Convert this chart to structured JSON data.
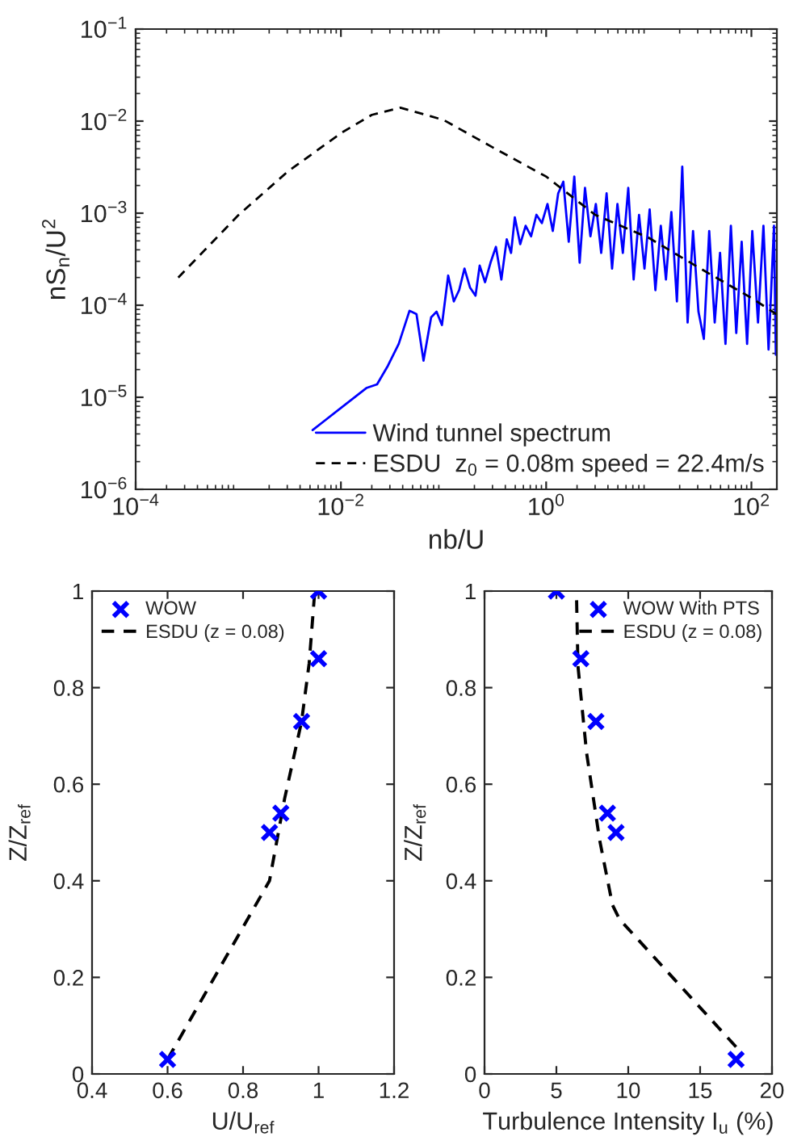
{
  "chart_data": [
    {
      "type": "line",
      "xlabel": "nb/U",
      "ylabel": "nS$_{n}$/U$^{2}$",
      "log": "xy",
      "grid": false,
      "legend": "bottom right",
      "xlim": [
        0.0001,
        177
      ],
      "ylim": [
        1e-06,
        0.1
      ],
      "xticks": [
        {
          "value": 0.0001,
          "label": "10$^{−4}$"
        },
        {
          "value": 0.01,
          "label": "10$^{−2}$"
        },
        {
          "value": 1,
          "label": "10$^{0}$"
        },
        {
          "value": 100,
          "label": "10$^{2}$"
        }
      ],
      "yticks": [
        {
          "value": 1e-06,
          "label": "10$^{−6}$"
        },
        {
          "value": 1e-05,
          "label": "10$^{−5}$"
        },
        {
          "value": 0.0001,
          "label": "10$^{−4}$"
        },
        {
          "value": 0.001,
          "label": "10$^{−3}$"
        },
        {
          "value": 0.01,
          "label": "10$^{−2}$"
        },
        {
          "value": 0.1,
          "label": "10$^{−1}$"
        }
      ],
      "series": [
        {
          "name": "Wind tunnel spectrum",
          "color": "#0000ff",
          "line_style": "solid",
          "x": [
            0.0053,
            0.0067,
            0.0177,
            0.0225,
            0.0287,
            0.0366,
            0.0466,
            0.0545,
            0.0638,
            0.0757,
            0.0855,
            0.0965,
            0.111,
            0.126,
            0.142,
            0.16,
            0.181,
            0.205,
            0.225,
            0.254,
            0.287,
            0.324,
            0.366,
            0.413,
            0.455,
            0.495,
            0.559,
            0.631,
            0.713,
            0.804,
            0.908,
            1.03,
            1.16,
            1.31,
            1.47,
            1.66,
            1.88,
            2.12,
            2.39,
            2.7,
            3.05,
            3.44,
            3.88,
            4.39,
            4.95,
            5.59,
            6.31,
            7.12,
            8.04,
            9.08,
            10.2,
            11.6,
            13.1,
            14.7,
            16.6,
            18.8,
            21.2,
            23.9,
            27.0,
            30.5,
            34.4,
            38.8,
            43.9,
            49.5,
            55.9,
            63.1,
            71.2,
            80.4,
            90.8,
            102,
            116,
            131,
            147,
            166,
            173
          ],
          "values": [
            4.4e-06,
            5.4e-06,
            1.26e-05,
            1.38e-05,
            2.2e-05,
            3.8e-05,
            8.7e-05,
            8e-05,
            2.5e-05,
            7.4e-05,
            8.5e-05,
            6.1e-05,
            0.00021,
            0.00011,
            0.000146,
            0.00025,
            0.000156,
            0.000127,
            0.00027,
            0.000178,
            0.00029,
            0.00043,
            0.00019,
            0.00052,
            0.00037,
            0.0009,
            0.00046,
            0.00073,
            0.00056,
            0.00096,
            0.00078,
            0.00126,
            0.00064,
            0.00164,
            0.0022,
            0.00049,
            0.0025,
            0.00029,
            0.00188,
            0.00056,
            0.00126,
            0.00037,
            0.00164,
            0.00025,
            0.00126,
            0.00037,
            0.00188,
            0.00019,
            0.00096,
            0.00025,
            0.0011,
            0.000146,
            0.00073,
            0.00019,
            0.00103,
            0.00011,
            0.0032,
            6.5e-05,
            0.00064,
            8.5e-05,
            4.3e-05,
            0.00064,
            6.5e-05,
            0.00037,
            3.8e-05,
            0.00073,
            5e-05,
            0.00049,
            3.8e-05,
            0.00064,
            6.5e-05,
            0.00073,
            3.3e-05,
            0.00073,
            2.9e-05
          ]
        },
        {
          "name": "ESDU  z$_{0}$ = 0.08m speed = 22.4m/s",
          "color": "#000000",
          "line_style": "dashed",
          "x": [
            0.00026,
            0.001,
            0.003,
            0.01,
            0.02,
            0.038,
            0.1,
            0.3,
            1,
            3,
            10,
            30,
            100,
            175
          ],
          "values": [
            0.0002,
            0.00095,
            0.0028,
            0.0074,
            0.0117,
            0.014,
            0.0103,
            0.0052,
            0.0025,
            0.00096,
            0.00054,
            0.00026,
            0.00012,
            8e-05
          ]
        }
      ]
    },
    {
      "type": "scatter",
      "xlabel": "U/U$_{ref}$",
      "ylabel": "Z/Z$_{ref}$",
      "grid": false,
      "legend": "top left",
      "xlim": [
        0.4,
        1.2
      ],
      "ylim": [
        0,
        1
      ],
      "xticks": [
        0.4,
        0.6,
        0.8,
        1,
        1.2
      ],
      "yticks": [
        0,
        0.2,
        0.4,
        0.6,
        0.8,
        1
      ],
      "series": [
        {
          "name": "WOW",
          "marker": "cross",
          "color": "#0000ff",
          "x": [
            0.6,
            0.87,
            0.9,
            0.955,
            1.0,
            1.0
          ],
          "values": [
            0.03,
            0.5,
            0.54,
            0.73,
            0.86,
            1.0
          ]
        },
        {
          "name": "ESDU (z = 0.08)",
          "type": "line",
          "line_style": "dashed",
          "color": "#000000",
          "x": [
            0.6,
            0.87,
            0.91,
            0.955,
            0.975,
            0.99
          ],
          "values": [
            0.03,
            0.4,
            0.57,
            0.73,
            0.85,
            1.0
          ]
        }
      ]
    },
    {
      "type": "scatter",
      "xlabel": "Turbulence Intensity I$_{u}$ (%)",
      "ylabel": "Z/Z$_{ref}$",
      "grid": false,
      "legend": "top right",
      "xlim": [
        0,
        20
      ],
      "ylim": [
        0,
        1
      ],
      "xticks": [
        0,
        5,
        10,
        15,
        20
      ],
      "yticks": [
        0,
        0.2,
        0.4,
        0.6,
        0.8,
        1
      ],
      "series": [
        {
          "name": "WOW With PTS",
          "marker": "cross",
          "color": "#0000ff",
          "x": [
            17.5,
            9.15,
            8.55,
            7.75,
            6.7,
            5.0
          ],
          "values": [
            0.03,
            0.5,
            0.54,
            0.73,
            0.86,
            1.0
          ]
        },
        {
          "name": "ESDU (z = 0.08)",
          "type": "line",
          "line_style": "dashed",
          "color": "#000000",
          "x": [
            17.5,
            9.4,
            8.9,
            8.0,
            7.1,
            6.5,
            6.4
          ],
          "values": [
            0.056,
            0.32,
            0.35,
            0.486,
            0.665,
            0.845,
            0.99
          ]
        }
      ]
    }
  ]
}
